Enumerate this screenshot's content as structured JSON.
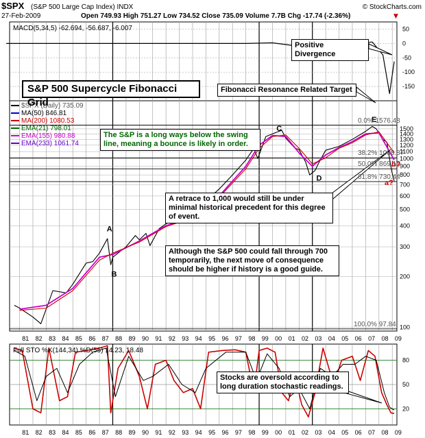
{
  "header": {
    "symbol": "$SPX",
    "name": "(S&P 500 Large Cap Index) INDX",
    "source": "© StockCharts.com",
    "date": "27-Feb-2009",
    "quote": "Open 749.93  High 751.27  Low 734.52  Close 735.09  Volume 7.7B  Chg -17.74 (-2.36%)",
    "quote_arrow": "▼"
  },
  "macd_label": "MACD(5,34,5) -62.694, -56.687, -6.007",
  "title": "S&P 500 Supercycle Fibonacci Grid",
  "legend": [
    {
      "text": "$SPX (Daily) 735.09",
      "color": "#000000"
    },
    {
      "text": "MA(50) 846.81",
      "color": "#0000cc"
    },
    {
      "text": "MA(200) 1080.53",
      "color": "#cc0000"
    },
    {
      "text": "EMA(21) 798.01",
      "color": "#006600"
    },
    {
      "text": "EMA(155) 980.88",
      "color": "#cc00cc"
    },
    {
      "text": "EMA(233) 1061.74",
      "color": "#6600cc"
    }
  ],
  "fib_labels": [
    {
      "text": "0.0% 1576.48",
      "y": 1576.48
    },
    {
      "text": "38.2% 1008.87",
      "y": 1008.87
    },
    {
      "text": "50.0% 869.16",
      "y": 869.16
    },
    {
      "text": "61.8% 730.44",
      "y": 730.44
    },
    {
      "text": "100.0% 97.84",
      "y": 97.84
    }
  ],
  "wave_labels": [
    {
      "text": "A",
      "x": 1987.55,
      "y": 370
    },
    {
      "text": "B",
      "x": 1987.9,
      "y": 200
    },
    {
      "text": "C",
      "x": 2000.3,
      "y": 1460
    },
    {
      "text": "D",
      "x": 2003.3,
      "y": 740
    },
    {
      "text": "E",
      "x": 2007.45,
      "y": 1650
    }
  ],
  "target_labels": [
    "b?",
    "a?"
  ],
  "notes": {
    "positive_divergence": "Positive Divergence",
    "fib_target": "Fibonacci Resonance Related Target",
    "swing_line": "The S&P is a long ways below the swing line, meaning a bounce is likely in order.",
    "retrace": "A retrace to 1,000 would still be under minimal historical precedent for this degree of event.",
    "fall_through": "Although the S&P 500 could fall through 700 temporarily, the next move of consequence should be higher if history is a good guide.",
    "oversold": "Stocks are oversold according to long duration stochastic readings."
  },
  "sto_label": "Full STO %K(144,34) %D(55) 14.23, 18.48",
  "colors": {
    "price": "#000000",
    "ema155": "#cc00cc",
    "ma200": "#cc0000",
    "sto_k": "#cc0000",
    "sto_d": "#000000",
    "fib": "#000000",
    "note_green": "#006600",
    "target_red": "#cc0000"
  },
  "chart_data": [
    {
      "type": "line",
      "title": "MACD(5,34,5) -62.694, -56.687, -6.007",
      "ylim": [
        -200,
        75
      ],
      "y_ticks": [
        50,
        0,
        -50,
        -100,
        -150
      ],
      "x": [
        1980,
        1985,
        1990,
        1995,
        1998,
        2000,
        2002,
        2004,
        2006,
        2007.5,
        2008.3,
        2008.8,
        2009.15
      ],
      "values": [
        0,
        0,
        0,
        0,
        0,
        2,
        -10,
        5,
        0,
        5,
        -40,
        -175,
        -63
      ],
      "legend": "none"
    },
    {
      "type": "line",
      "title": "S&P 500 Supercycle Fibonacci Grid",
      "yscale": "log",
      "ylim": [
        95,
        2200
      ],
      "y_ticks": [
        100,
        200,
        300,
        400,
        500,
        600,
        700,
        800,
        900,
        1000,
        1100,
        1200,
        1300,
        1400,
        1500
      ],
      "x_ticks": [
        "81",
        "82",
        "83",
        "84",
        "85",
        "86",
        "87",
        "88",
        "89",
        "90",
        "91",
        "92",
        "93",
        "94",
        "95",
        "96",
        "97",
        "98",
        "99",
        "00",
        "01",
        "02",
        "03",
        "04",
        "05",
        "06",
        "07",
        "08",
        "09"
      ],
      "series": [
        {
          "name": "$SPX (Daily) 735.09",
          "x": [
            1980.6,
            1981.0,
            1982.0,
            1982.6,
            1983.5,
            1984.5,
            1985.0,
            1986.0,
            1986.5,
            1987.0,
            1987.6,
            1987.85,
            1988.0,
            1989.0,
            1989.7,
            1990.0,
            1990.5,
            1990.8,
            1991.5,
            1992.0,
            1993.0,
            1994.0,
            1995.0,
            1996.0,
            1997.0,
            1998.0,
            1998.6,
            1998.9,
            1999.5,
            2000.2,
            2000.7,
            2001.0,
            2001.7,
            2002.0,
            2002.5,
            2002.8,
            2003.2,
            2003.5,
            2004.0,
            2005.0,
            2006.0,
            2007.0,
            2007.5,
            2007.8,
            2008.3,
            2008.6,
            2008.8,
            2008.95,
            2009.15
          ],
          "values": [
            135,
            130,
            115,
            105,
            165,
            160,
            180,
            240,
            245,
            275,
            335,
            235,
            260,
            300,
            350,
            330,
            360,
            305,
            385,
            410,
            450,
            460,
            560,
            660,
            800,
            980,
            1150,
            1000,
            1350,
            1420,
            1470,
            1320,
            1150,
            1130,
            950,
            800,
            850,
            950,
            1120,
            1180,
            1300,
            1450,
            1550,
            1500,
            1300,
            1250,
            1000,
            850,
            735
          ]
        },
        {
          "name": "EMA(155) 980.88",
          "x": [
            1981,
            1983,
            1985,
            1987,
            1988,
            1990,
            1992,
            1994,
            1996,
            1998,
            1999,
            2000,
            2001,
            2002,
            2003,
            2004,
            2005,
            2006,
            2007,
            2008,
            2009.15
          ],
          "values": [
            128,
            135,
            170,
            260,
            270,
            325,
            400,
            450,
            600,
            900,
            1200,
            1370,
            1350,
            1080,
            900,
            1050,
            1160,
            1260,
            1400,
            1420,
            981
          ]
        },
        {
          "name": "MA(200) 1080.53",
          "x": [
            1981,
            1983,
            1985,
            1987,
            1988,
            1990,
            1992,
            1994,
            1996,
            1998,
            1999,
            2000,
            2001,
            2002,
            2003,
            2004,
            2005,
            2006,
            2007,
            2008,
            2009.15
          ],
          "values": [
            126,
            130,
            165,
            250,
            275,
            320,
            395,
            445,
            590,
            870,
            1150,
            1350,
            1380,
            1150,
            930,
            1010,
            1150,
            1240,
            1380,
            1440,
            1081
          ]
        }
      ]
    },
    {
      "type": "line",
      "title": "Full STO %K(144,34) %D(55) 14.23, 18.48",
      "ylim": [
        0,
        100
      ],
      "y_ticks": [
        80,
        50,
        20
      ],
      "x_ticks": [
        "81",
        "82",
        "83",
        "84",
        "85",
        "86",
        "87",
        "88",
        "89",
        "90",
        "91",
        "92",
        "93",
        "94",
        "95",
        "96",
        "97",
        "98",
        "99",
        "00",
        "01",
        "02",
        "03",
        "04",
        "05",
        "06",
        "07",
        "08",
        "09"
      ],
      "series": [
        {
          "name": "%K",
          "x": [
            1980.6,
            1981.2,
            1982.0,
            1982.6,
            1983.2,
            1984.0,
            1984.6,
            1985.2,
            1986.0,
            1987.0,
            1987.6,
            1987.85,
            1988.4,
            1989.2,
            1990.0,
            1990.6,
            1991.2,
            1992.0,
            1992.6,
            1993.3,
            1994.0,
            1994.6,
            1995.2,
            1996.2,
            1997.2,
            1998.0,
            1998.6,
            1999.0,
            1999.6,
            2000.2,
            2000.7,
            2001.2,
            2001.7,
            2002.2,
            2002.7,
            2003.2,
            2003.8,
            2004.6,
            2005.2,
            2006.0,
            2006.6,
            2007.2,
            2007.7,
            2008.2,
            2008.6,
            2008.9,
            2009.15
          ],
          "values": [
            95,
            92,
            20,
            15,
            95,
            30,
            35,
            90,
            92,
            95,
            98,
            15,
            70,
            92,
            60,
            20,
            75,
            80,
            55,
            40,
            45,
            20,
            90,
            92,
            93,
            90,
            40,
            92,
            95,
            90,
            40,
            30,
            60,
            25,
            10,
            40,
            95,
            50,
            80,
            85,
            55,
            92,
            85,
            40,
            25,
            15,
            14.23
          ]
        },
        {
          "name": "%D",
          "x": [
            1980.6,
            1981.4,
            1982.3,
            1983.0,
            1983.8,
            1984.6,
            1985.5,
            1986.5,
            1987.5,
            1988.2,
            1989.2,
            1990.3,
            1991.0,
            1992.2,
            1993.2,
            1994.2,
            1995.0,
            1996.5,
            1998.0,
            1998.8,
            1999.6,
            2000.5,
            2001.3,
            2002.0,
            2002.8,
            2003.6,
            2004.5,
            2005.3,
            2006.2,
            2007.0,
            2007.8,
            2008.4,
            2008.8,
            2009.15
          ],
          "values": [
            92,
            85,
            30,
            60,
            70,
            40,
            75,
            90,
            95,
            35,
            85,
            55,
            60,
            75,
            50,
            40,
            70,
            90,
            90,
            55,
            88,
            70,
            35,
            45,
            20,
            70,
            60,
            75,
            75,
            85,
            80,
            40,
            22,
            18.48
          ]
        }
      ]
    }
  ]
}
